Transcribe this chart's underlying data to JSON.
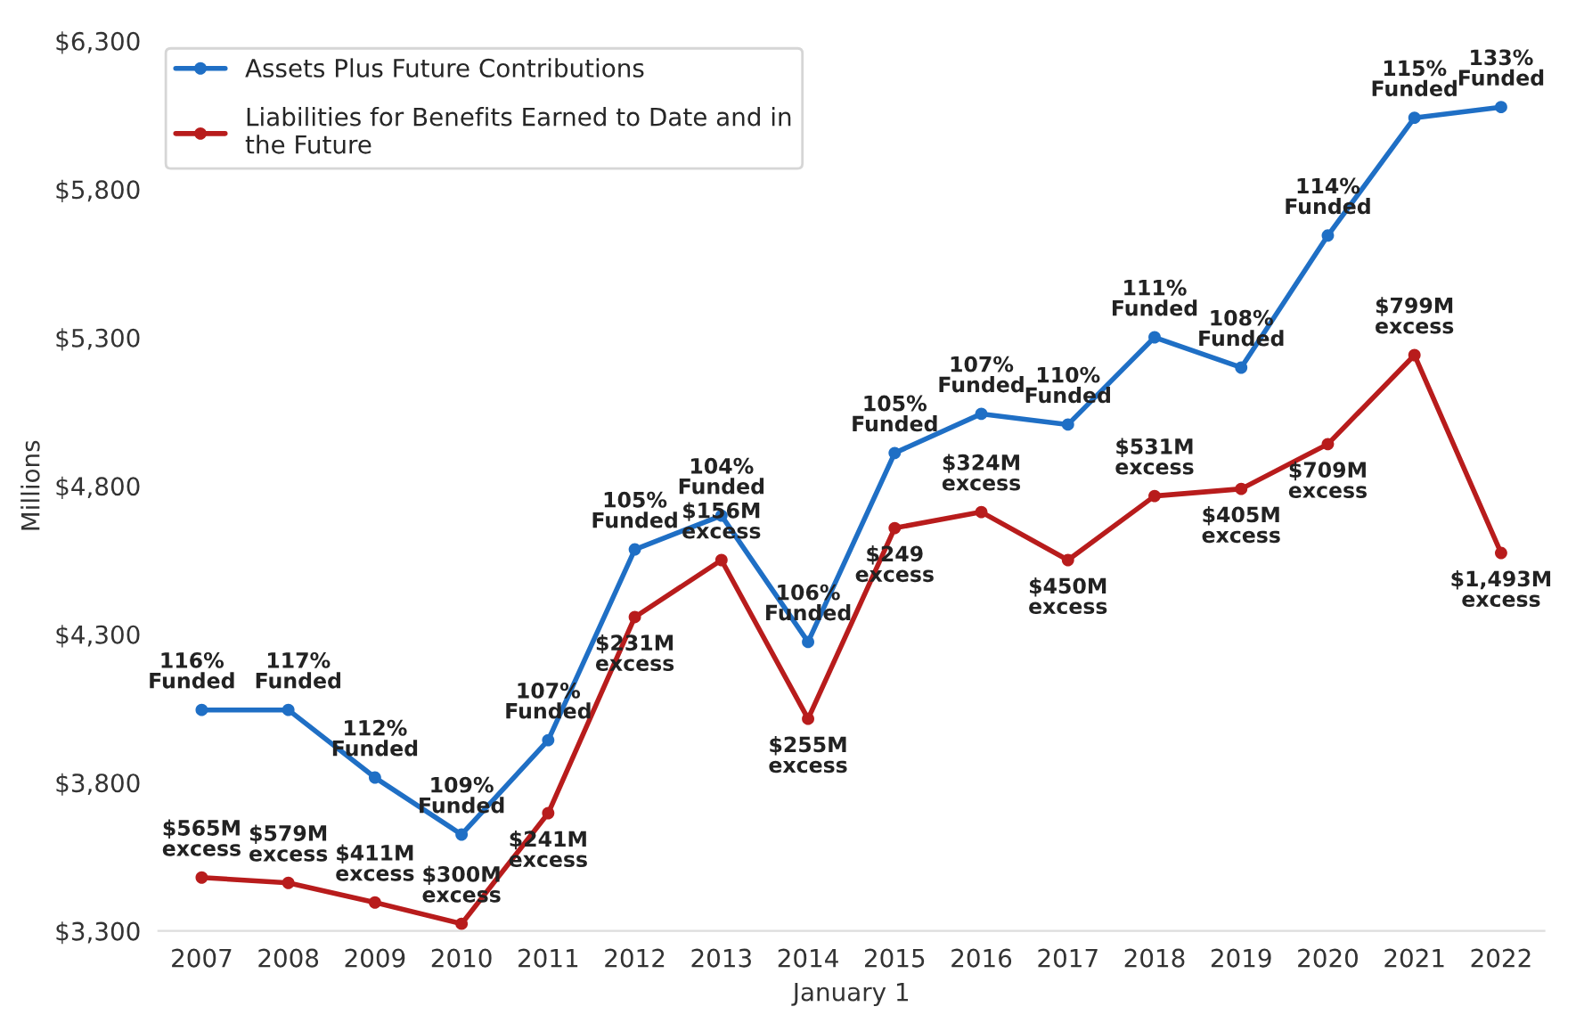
{
  "chart_data": {
    "type": "line",
    "xlabel": "January 1",
    "ylabel": "Millions",
    "categories": [
      "2007",
      "2008",
      "2009",
      "2010",
      "2011",
      "2012",
      "2013",
      "2014",
      "2015",
      "2016",
      "2017",
      "2018",
      "2019",
      "2020",
      "2021",
      "2022"
    ],
    "series": [
      {
        "name": "Assets Plus Future Contributions",
        "color": "#1f6fc5",
        "values": [
          4045,
          4045,
          3817,
          3625,
          3943,
          4586,
          4700,
          4274,
          4911,
          5043,
          5007,
          5301,
          5199,
          5644,
          6041,
          6077
        ]
      },
      {
        "name": "Liabilities for Benefits Earned to Date and in\nthe Future",
        "color": "#b81c1c",
        "values": [
          3480,
          3462,
          3396,
          3324,
          3697,
          4358,
          4550,
          4015,
          4658,
          4712,
          4550,
          4766,
          4790,
          4941,
          5241,
          4574
        ]
      }
    ],
    "annotations": [
      {
        "text": "116%\nFunded",
        "x": "2007",
        "y": 4045
      },
      {
        "text": "117%\nFunded",
        "x": "2008",
        "y": 4045
      },
      {
        "text": "112%\nFunded",
        "x": "2009",
        "y": 3817
      },
      {
        "text": "109%\nFunded",
        "x": "2010",
        "y": 3625
      },
      {
        "text": "107%\nFunded",
        "x": "2011",
        "y": 3943
      },
      {
        "text": "105%\nFunded",
        "x": "2012",
        "y": 4586
      },
      {
        "text": "104%\nFunded",
        "x": "2013",
        "y": 4700
      },
      {
        "text": "106%\nFunded",
        "x": "2014",
        "y": 4274
      },
      {
        "text": "105%\nFunded",
        "x": "2015",
        "y": 4911
      },
      {
        "text": "107%\nFunded",
        "x": "2016",
        "y": 5043
      },
      {
        "text": "110%\nFunded",
        "x": "2017",
        "y": 5007
      },
      {
        "text": "111%\nFunded",
        "x": "2018",
        "y": 5301
      },
      {
        "text": "108%\nFunded",
        "x": "2019",
        "y": 5199
      },
      {
        "text": "114%\nFunded",
        "x": "2020",
        "y": 5644
      },
      {
        "text": "115%\nFunded",
        "x": "2021",
        "y": 6041
      },
      {
        "text": "133%\nFunded",
        "x": "2022",
        "y": 6077
      },
      {
        "text": "$565M\nexcess",
        "x": "2007",
        "y": 3480
      },
      {
        "text": "$579M\nexcess",
        "x": "2008",
        "y": 3462
      },
      {
        "text": "$411M\nexcess",
        "x": "2009",
        "y": 3396
      },
      {
        "text": "$300M\nexcess",
        "x": "2010",
        "y": 3324
      },
      {
        "text": "$241M\nexcess",
        "x": "2011",
        "y": 3697
      },
      {
        "text": "$231M\nexcess",
        "x": "2012",
        "y": 4358
      },
      {
        "text": "$156M\nexcess",
        "x": "2013",
        "y": 4550
      },
      {
        "text": "$255M\nexcess",
        "x": "2014",
        "y": 4015
      },
      {
        "text": "$249\nexcess",
        "x": "2015",
        "y": 4658
      },
      {
        "text": "$324M\nexcess",
        "x": "2016",
        "y": 4712
      },
      {
        "text": "$450M\nexcess",
        "x": "2017",
        "y": 4550
      },
      {
        "text": "$531M\nexcess",
        "x": "2018",
        "y": 4766
      },
      {
        "text": "$405M\nexcess",
        "x": "2019",
        "y": 4790
      },
      {
        "text": "$709M\nexcess",
        "x": "2020",
        "y": 4941
      },
      {
        "text": "$799M\nexcess",
        "x": "2021",
        "y": 5241
      },
      {
        "text": "$1,493M\nexcess",
        "x": "2022",
        "y": 4574
      }
    ],
    "ylim": [
      3300,
      6300
    ],
    "yticks": [
      {
        "value": 3300,
        "label": "$3,300"
      },
      {
        "value": 3800,
        "label": "$3,800"
      },
      {
        "value": 4300,
        "label": "$4,300"
      },
      {
        "value": 4800,
        "label": "$4,800"
      },
      {
        "value": 5300,
        "label": "$5,300"
      },
      {
        "value": 5800,
        "label": "$5,800"
      },
      {
        "value": 6300,
        "label": "$6,300"
      }
    ],
    "grid": false,
    "legend": "top left",
    "marker": "circle",
    "line_style": "solid"
  }
}
